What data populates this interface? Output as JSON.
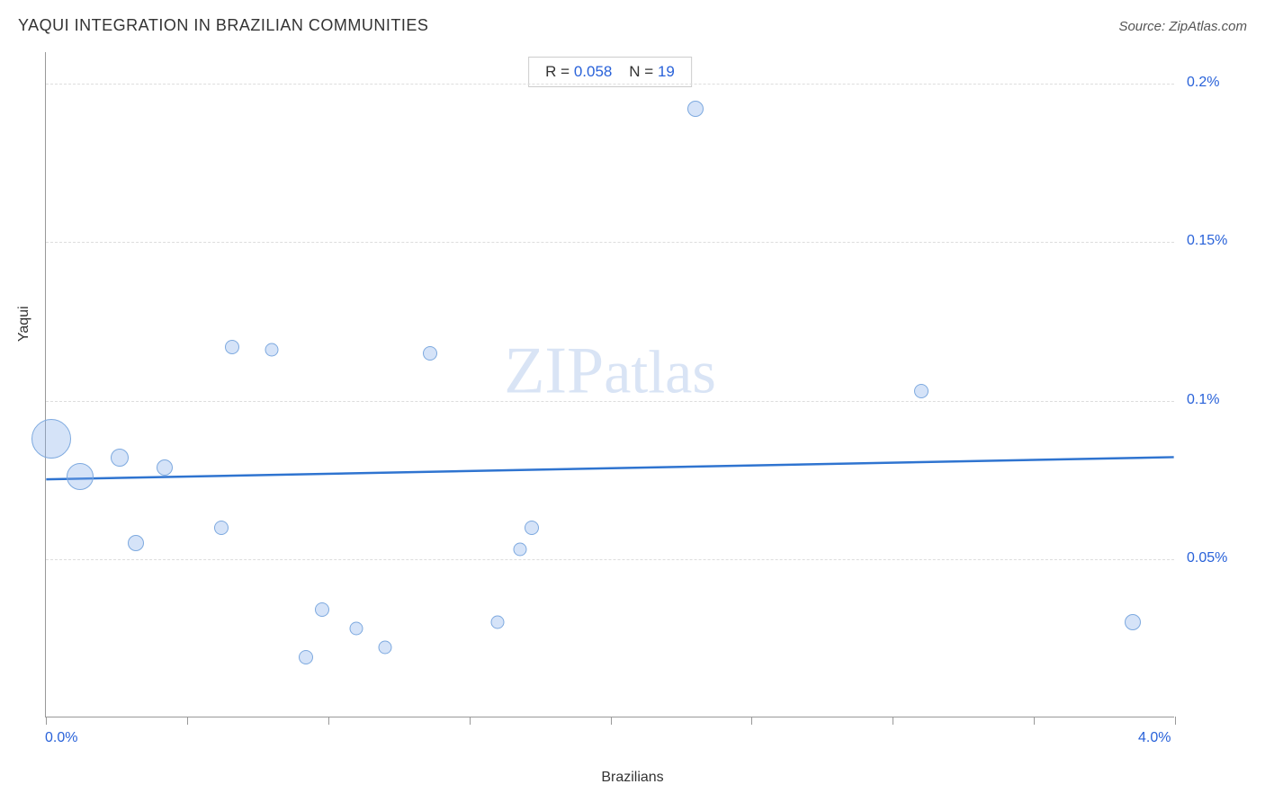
{
  "title": "YAQUI INTEGRATION IN BRAZILIAN COMMUNITIES",
  "source": "Source: ZipAtlas.com",
  "watermark_bold": "ZIP",
  "watermark_thin": "atlas",
  "chart": {
    "type": "scatter-bubble",
    "xlabel": "Brazilians",
    "ylabel": "Yaqui",
    "xlim": [
      0.0,
      4.0
    ],
    "ylim": [
      0.0,
      0.21
    ],
    "x_start_label": "0.0%",
    "x_end_label": "4.0%",
    "y_tick_labels": [
      {
        "v": 0.05,
        "label": "0.05%"
      },
      {
        "v": 0.1,
        "label": "0.1%"
      },
      {
        "v": 0.15,
        "label": "0.15%"
      },
      {
        "v": 0.2,
        "label": "0.2%"
      }
    ],
    "x_tick_positions": [
      0.0,
      0.5,
      1.0,
      1.5,
      2.0,
      2.5,
      3.0,
      3.5,
      4.0
    ],
    "y_grid_positions": [
      0.05,
      0.1,
      0.15,
      0.2
    ],
    "grid_color": "#dddddd",
    "axis_color": "#999999",
    "background_color": "#ffffff",
    "bubble_fill": "rgba(135,175,235,0.35)",
    "bubble_stroke": "#7da9df",
    "trend_color": "#2f74d0",
    "trend_width": 2.5,
    "trend_y_at_xmin": 0.075,
    "trend_y_at_xmax": 0.082,
    "stats": {
      "R_label": "R =",
      "R_value": "0.058",
      "N_label": "N =",
      "N_value": "19"
    },
    "points": [
      {
        "x": 0.02,
        "y": 0.088,
        "r": 44
      },
      {
        "x": 0.12,
        "y": 0.076,
        "r": 30
      },
      {
        "x": 0.26,
        "y": 0.082,
        "r": 20
      },
      {
        "x": 0.42,
        "y": 0.079,
        "r": 18
      },
      {
        "x": 0.32,
        "y": 0.055,
        "r": 18
      },
      {
        "x": 0.62,
        "y": 0.06,
        "r": 16
      },
      {
        "x": 0.66,
        "y": 0.117,
        "r": 16
      },
      {
        "x": 0.8,
        "y": 0.116,
        "r": 15
      },
      {
        "x": 0.92,
        "y": 0.019,
        "r": 16
      },
      {
        "x": 0.98,
        "y": 0.034,
        "r": 16
      },
      {
        "x": 1.1,
        "y": 0.028,
        "r": 15
      },
      {
        "x": 1.2,
        "y": 0.022,
        "r": 15
      },
      {
        "x": 1.36,
        "y": 0.115,
        "r": 16
      },
      {
        "x": 1.6,
        "y": 0.03,
        "r": 15
      },
      {
        "x": 1.68,
        "y": 0.053,
        "r": 15
      },
      {
        "x": 1.72,
        "y": 0.06,
        "r": 16
      },
      {
        "x": 2.3,
        "y": 0.192,
        "r": 18
      },
      {
        "x": 3.1,
        "y": 0.103,
        "r": 16
      },
      {
        "x": 3.85,
        "y": 0.03,
        "r": 18
      }
    ]
  }
}
